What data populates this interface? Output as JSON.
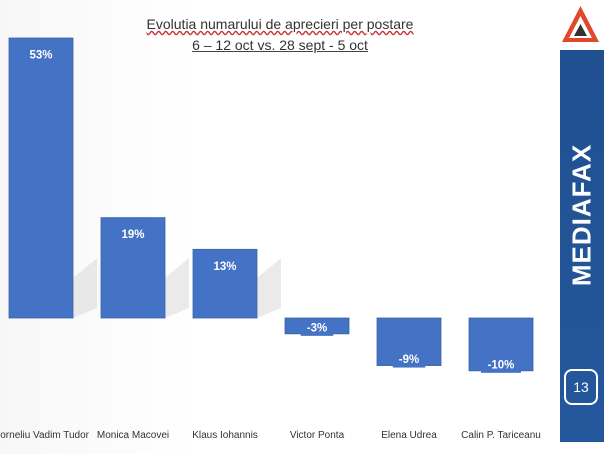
{
  "title_line1": "Evolutia numarului de aprecieri per postare",
  "title_line2": "6 – 12 oct vs. 28 sept - 5 oct",
  "brand": "MEDIAFAX",
  "page_number": "13",
  "colors": {
    "bar": "#4472c4",
    "sidebar": "#1f4f8f",
    "logo_red": "#e0472b"
  },
  "chart_data": {
    "type": "bar",
    "title": "Evolutia numarului de aprecieri per postare",
    "subtitle": "6 – 12 oct vs. 28 sept - 5 oct",
    "categories": [
      "Corneliu Vadim Tudor",
      "Monica Macovei",
      "Klaus Iohannis",
      "Victor Ponta",
      "Elena Udrea",
      "Calin P. Tariceanu"
    ],
    "values": [
      53,
      19,
      13,
      -3,
      -9,
      -10
    ],
    "data_labels": [
      "53%",
      "19%",
      "13%",
      "-3%",
      "-9%",
      "-10%"
    ],
    "unit": "%",
    "ylim": [
      -10,
      53
    ],
    "grid": false,
    "legend": "none"
  }
}
